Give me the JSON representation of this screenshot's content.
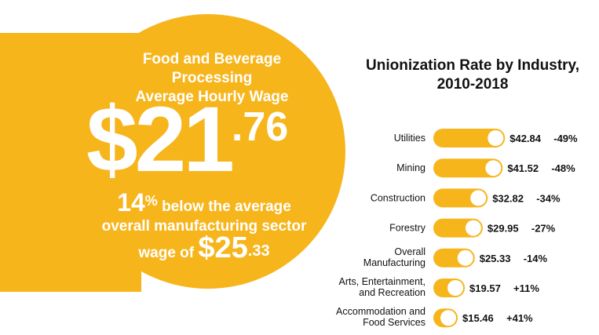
{
  "colors": {
    "accent": "#F7B51C",
    "text": "#111111",
    "knob": "#ffffff"
  },
  "infographic": {
    "headline": [
      "Food and Beverage",
      "Processing",
      "Average Hourly Wage"
    ],
    "wage_dollars": "$21",
    "wage_cents": ".76",
    "diff_pct_number": "14",
    "diff_pct_symbol": "%",
    "diff_text": " below the average",
    "overall_line": "overall manufacturing sector",
    "wage_of_text": "wage of ",
    "avg_dollars": "$25",
    "avg_cents": ".33"
  },
  "chart_data": {
    "type": "bar",
    "orientation": "horizontal",
    "title": [
      "Unionization Rate by Industry,",
      "2010-2018"
    ],
    "categories": [
      [
        "Utilities"
      ],
      [
        "Mining"
      ],
      [
        "Construction"
      ],
      [
        "Forestry"
      ],
      [
        "Overall",
        "Manufacturing"
      ],
      [
        "Arts, Entertainment,",
        "and Recreation"
      ],
      [
        "Accommodation and",
        "Food Services"
      ]
    ],
    "values": [
      42.84,
      41.52,
      32.82,
      29.95,
      25.33,
      19.57,
      15.46
    ],
    "value_labels": [
      "$42.84",
      "$41.52",
      "$32.82",
      "$29.95",
      "$25.33",
      "$19.57",
      "$15.46"
    ],
    "pct_labels": [
      "-49%",
      "-48%",
      "-34%",
      "-27%",
      "-14%",
      "+11%",
      "+41%"
    ],
    "xlim": [
      0,
      45
    ],
    "grid": false,
    "legend": "none"
  }
}
